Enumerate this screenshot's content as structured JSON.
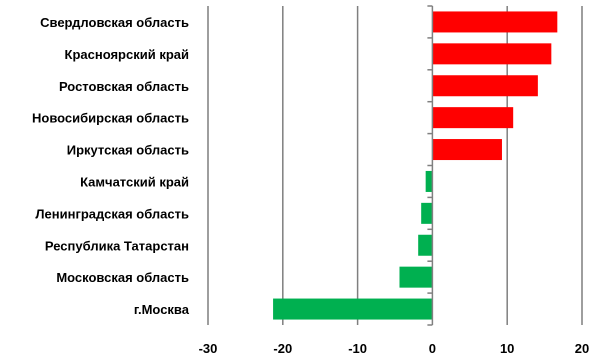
{
  "chart_data": {
    "type": "bar",
    "orientation": "horizontal",
    "categories": [
      "Свердловская область",
      "Красноярский край",
      "Ростовская область",
      "Новосибирская область",
      "Иркутская область",
      "Камчатский край",
      "Ленинградская область",
      "Республика Татарстан",
      "Московская область",
      "г.Москва"
    ],
    "values": [
      16.7,
      15.9,
      14.1,
      10.8,
      9.3,
      -0.9,
      -1.5,
      -1.9,
      -4.4,
      -21.3
    ],
    "xlim": [
      -30,
      20
    ],
    "xticks": [
      "-30",
      "-20",
      "-10",
      "0",
      "10",
      "20"
    ],
    "xtick_values": [
      -30,
      -20,
      -10,
      0,
      10,
      20
    ],
    "grid": "vertical",
    "colors": {
      "positive": "#ff0000",
      "negative": "#00b050",
      "grid": "#7f7f7f",
      "axis": "#808080"
    }
  }
}
